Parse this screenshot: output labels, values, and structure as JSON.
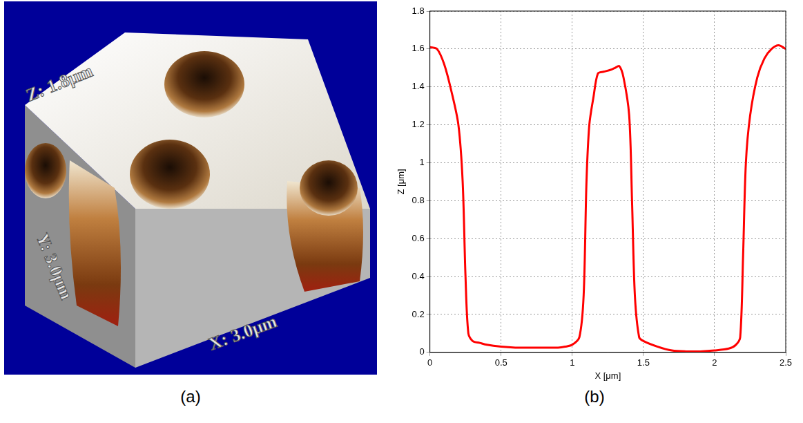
{
  "panel_a": {
    "label": "(a)",
    "axis_labels": {
      "z": "Z: 1.8μm",
      "y": "Y: 3.0μm",
      "x": "X: 3.0μm"
    }
  },
  "chart_data": {
    "type": "line",
    "panel_label": "(b)",
    "x_label": "X [μm]",
    "y_label": "Z [μm]",
    "x": [
      0,
      0.05,
      0.1,
      0.15,
      0.2,
      0.23,
      0.25,
      0.27,
      0.3,
      0.35,
      0.4,
      0.5,
      0.6,
      0.7,
      0.8,
      0.9,
      0.95,
      1.0,
      1.05,
      1.08,
      1.1,
      1.12,
      1.15,
      1.18,
      1.22,
      1.27,
      1.3,
      1.33,
      1.36,
      1.4,
      1.42,
      1.44,
      1.47,
      1.5,
      1.6,
      1.7,
      1.8,
      1.9,
      2.0,
      2.1,
      2.15,
      2.18,
      2.2,
      2.22,
      2.25,
      2.3,
      2.35,
      2.4,
      2.45,
      2.5
    ],
    "series": [
      {
        "color": "#ff0000",
        "values": [
          1.61,
          1.6,
          1.52,
          1.38,
          1.2,
          0.9,
          0.4,
          0.1,
          0.06,
          0.05,
          0.04,
          0.03,
          0.025,
          0.025,
          0.025,
          0.025,
          0.03,
          0.04,
          0.08,
          0.3,
          0.9,
          1.2,
          1.35,
          1.47,
          1.48,
          1.49,
          1.5,
          1.51,
          1.45,
          1.25,
          0.8,
          0.3,
          0.08,
          0.06,
          0.03,
          0.01,
          0.005,
          0.005,
          0.01,
          0.02,
          0.04,
          0.08,
          0.5,
          1.0,
          1.25,
          1.45,
          1.55,
          1.6,
          1.62,
          1.6
        ]
      }
    ],
    "xlim": [
      0,
      2.5
    ],
    "xticks": [
      0,
      0.5,
      1,
      1.5,
      2,
      2.5
    ],
    "ylim": [
      0,
      1.8
    ],
    "yticks": [
      0,
      0.2,
      0.4,
      0.6,
      0.8,
      1,
      1.2,
      1.4,
      1.6,
      1.8
    ],
    "grid": true
  }
}
